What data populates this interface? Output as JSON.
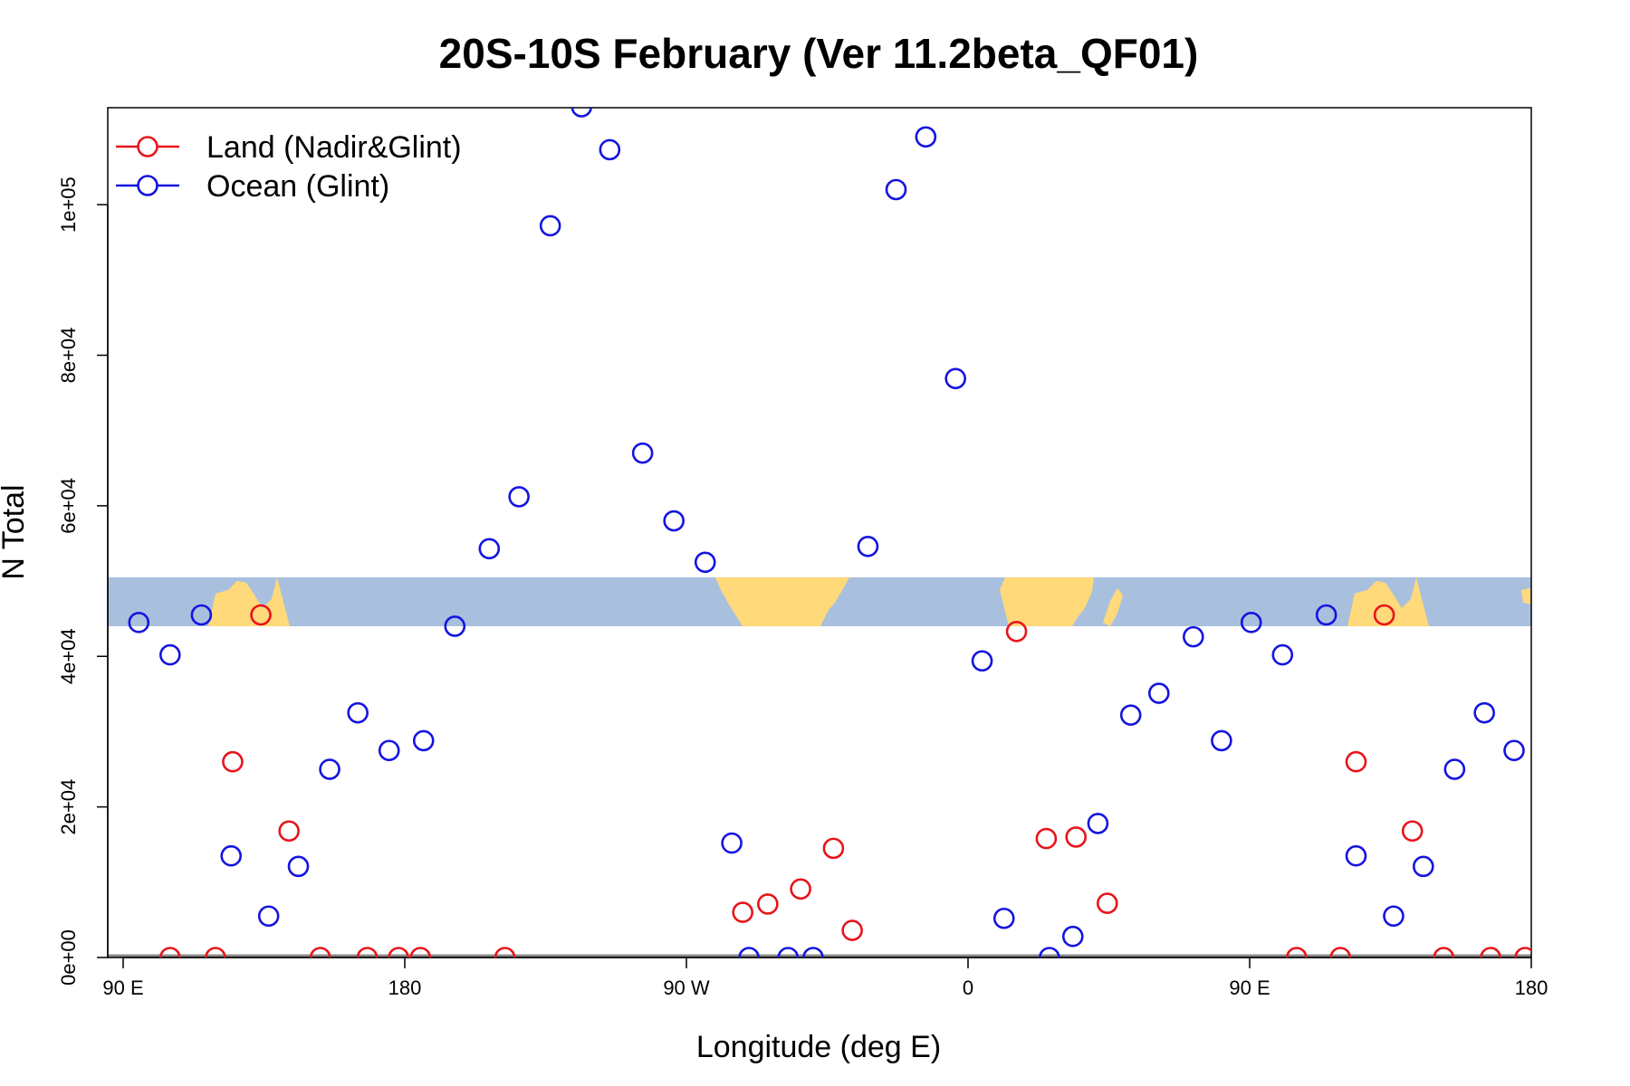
{
  "chart_data": {
    "type": "scatter",
    "title": "20S-10S February (Ver 11.2beta_QF01)",
    "xlabel": "Longitude (deg E)",
    "ylabel": "N Total",
    "xlim": [
      90,
      540
    ],
    "ylim": [
      0,
      113000
    ],
    "x_ticks": [
      {
        "value": 90,
        "label": "90 E"
      },
      {
        "value": 180,
        "label": "180"
      },
      {
        "value": 270,
        "label": "90 W"
      },
      {
        "value": 360,
        "label": "0"
      },
      {
        "value": 450,
        "label": "90 E"
      },
      {
        "value": 540,
        "label": "180"
      }
    ],
    "y_ticks": [
      {
        "value": 0,
        "label": "0e+00"
      },
      {
        "value": 20000,
        "label": "2e+04"
      },
      {
        "value": 40000,
        "label": "4e+04"
      },
      {
        "value": 60000,
        "label": "6e+04"
      },
      {
        "value": 80000,
        "label": "8e+04"
      },
      {
        "value": 100000,
        "label": "1e+05"
      }
    ],
    "grid": false,
    "legend_position": "top-left",
    "map_band": {
      "y_range": [
        44000,
        50500
      ],
      "ocean_color": "#a8c0de",
      "land_color": "#ffd97a"
    },
    "series": [
      {
        "name": "Land (Nadir&Glint)",
        "color": "#e8141b",
        "marker": "open-circle",
        "points": [
          [
            105,
            0
          ],
          [
            119.5,
            0
          ],
          [
            125,
            26000
          ],
          [
            134,
            45500
          ],
          [
            143,
            16800
          ],
          [
            153,
            0
          ],
          [
            168,
            0
          ],
          [
            178,
            0
          ],
          [
            185,
            0
          ],
          [
            212,
            0
          ],
          [
            288,
            6000
          ],
          [
            296,
            7100
          ],
          [
            306.5,
            9100
          ],
          [
            317,
            14500
          ],
          [
            323,
            3600
          ],
          [
            375.5,
            43300
          ],
          [
            385,
            15800
          ],
          [
            394.5,
            16000
          ],
          [
            404.5,
            7200
          ],
          [
            465,
            0
          ],
          [
            479,
            0
          ],
          [
            484,
            26000
          ],
          [
            493,
            45500
          ],
          [
            502,
            16800
          ],
          [
            512,
            0
          ],
          [
            527,
            0
          ],
          [
            538,
            0
          ]
        ]
      },
      {
        "name": "Ocean (Glint)",
        "color": "#1414e0",
        "marker": "open-circle",
        "points": [
          [
            95,
            44500
          ],
          [
            105,
            40200
          ],
          [
            115,
            45500
          ],
          [
            124.5,
            13500
          ],
          [
            136.5,
            5500
          ],
          [
            146,
            12100
          ],
          [
            156,
            25000
          ],
          [
            165,
            32500
          ],
          [
            175,
            27500
          ],
          [
            186,
            28800
          ],
          [
            196,
            44000
          ],
          [
            207,
            54300
          ],
          [
            216.5,
            61200
          ],
          [
            226.5,
            97200
          ],
          [
            236.5,
            113000
          ],
          [
            245.5,
            107300
          ],
          [
            256,
            67000
          ],
          [
            266,
            58000
          ],
          [
            276,
            52500
          ],
          [
            284.5,
            15200
          ],
          [
            290,
            0
          ],
          [
            302.5,
            0
          ],
          [
            310.5,
            0
          ],
          [
            328,
            54600
          ],
          [
            337,
            102000
          ],
          [
            346.5,
            109000
          ],
          [
            356,
            76900
          ],
          [
            364.5,
            39400
          ],
          [
            371.5,
            5200
          ],
          [
            386,
            0
          ],
          [
            393.5,
            2800
          ],
          [
            401.5,
            17800
          ],
          [
            412,
            32200
          ],
          [
            421,
            35100
          ],
          [
            432,
            42600
          ],
          [
            441,
            28800
          ],
          [
            450.5,
            44500
          ],
          [
            460.5,
            40200
          ],
          [
            474.5,
            45500
          ],
          [
            484,
            13500
          ],
          [
            496,
            5500
          ],
          [
            505.5,
            12100
          ],
          [
            515.5,
            25000
          ],
          [
            525,
            32500
          ],
          [
            534.5,
            27500
          ]
        ]
      }
    ]
  }
}
